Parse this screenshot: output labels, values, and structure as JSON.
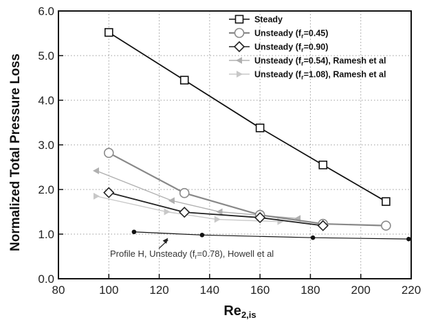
{
  "chart_data": {
    "type": "line",
    "xlabel_main": "Re",
    "xlabel_sub": "2,is",
    "ylabel": "Normalized Total Pressure Loss",
    "xlim": [
      80,
      220
    ],
    "ylim": [
      0.0,
      6.0
    ],
    "xticks": [
      "80",
      "100",
      "120",
      "140",
      "160",
      "180",
      "200",
      "220"
    ],
    "yticks": [
      "0.0",
      "1.0",
      "2.0",
      "3.0",
      "4.0",
      "5.0",
      "6.0"
    ],
    "grid": "dotted",
    "legend_position": "top-right",
    "series": [
      {
        "label_pre": "Steady",
        "label_sub": "",
        "label_post": "",
        "marker": "square",
        "color": "#111111",
        "x": [
          100,
          130,
          160,
          185,
          210
        ],
        "y": [
          5.52,
          4.45,
          3.38,
          2.55,
          1.73
        ]
      },
      {
        "label_pre": "Unsteady (f",
        "label_sub": "r",
        "label_post": "=0.45)",
        "marker": "circle",
        "color": "#888888",
        "x": [
          100,
          130,
          160,
          185,
          210
        ],
        "y": [
          2.82,
          1.92,
          1.43,
          1.23,
          1.19
        ]
      },
      {
        "label_pre": "Unsteady (f",
        "label_sub": "r",
        "label_post": "=0.90)",
        "marker": "diamond",
        "color": "#222222",
        "x": [
          100,
          130,
          160,
          185
        ],
        "y": [
          1.93,
          1.49,
          1.37,
          1.19
        ]
      },
      {
        "label_pre": "Unsteady (f",
        "label_sub": "r",
        "label_post": "=0.54), Ramesh et al",
        "marker": "triangle-left",
        "color": "#b0b0b0",
        "x": [
          95,
          125,
          144,
          175
        ],
        "y": [
          2.42,
          1.75,
          1.5,
          1.35
        ]
      },
      {
        "label_pre": "Unsteady (f",
        "label_sub": "r",
        "label_post": "=1.08), Ramesh et al",
        "marker": "triangle-right",
        "color": "#c8c8c8",
        "x": [
          95,
          123,
          143,
          168
        ],
        "y": [
          1.85,
          1.5,
          1.33,
          1.28
        ]
      },
      {
        "label_pre": "",
        "label_sub": "",
        "label_post": "",
        "marker": "dot",
        "color": "#111111",
        "x": [
          110,
          137,
          181,
          219
        ],
        "y": [
          1.05,
          0.98,
          0.92,
          0.89
        ]
      }
    ],
    "annotation": {
      "text_pre": "Profile H, Unsteady (f",
      "text_sub": "r",
      "text_post": "=0.78), Howell et al",
      "target": [
        123.5,
        0.93
      ]
    }
  }
}
